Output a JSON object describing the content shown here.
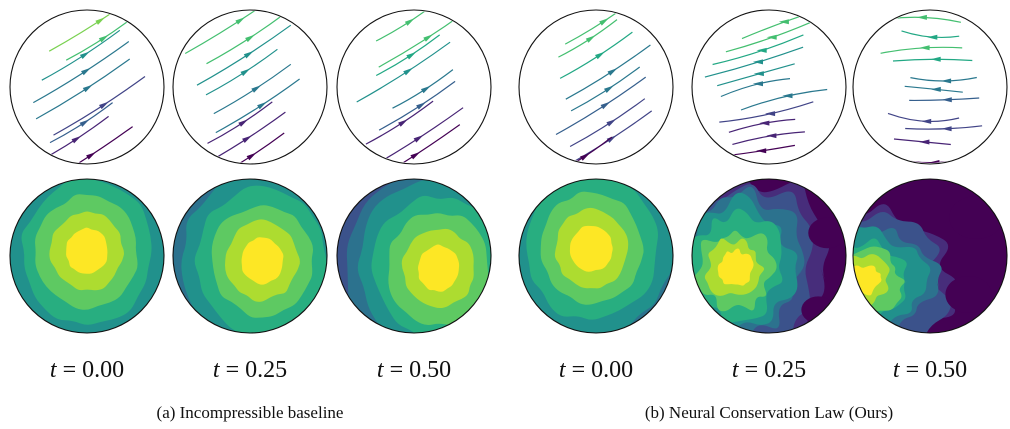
{
  "groups": [
    {
      "caption": "(a) Incompressible baseline",
      "panels": [
        {
          "t_var": "t",
          "t_value": "= 0.00",
          "density_peak": [
            0.5,
            0.47
          ],
          "density_spread": 0.55,
          "flow": "uniform"
        },
        {
          "t_var": "t",
          "t_value": "= 0.25",
          "density_peak": [
            0.58,
            0.53
          ],
          "density_spread": 0.55,
          "flow": "uniform"
        },
        {
          "t_var": "t",
          "t_value": "= 0.50",
          "density_peak": [
            0.66,
            0.58
          ],
          "density_spread": 0.55,
          "flow": "uniform"
        }
      ]
    },
    {
      "caption": "(b) Neural Conservation Law (Ours)",
      "panels": [
        {
          "t_var": "t",
          "t_value": "= 0.00",
          "density_peak": [
            0.47,
            0.45
          ],
          "density_spread": 0.55,
          "flow": "uniform"
        },
        {
          "t_var": "t",
          "t_value": "= 0.25",
          "density_peak": [
            0.28,
            0.58
          ],
          "density_spread": 0.38,
          "flow": "diverging"
        },
        {
          "t_var": "t",
          "t_value": "= 0.50",
          "density_peak": [
            0.06,
            0.66
          ],
          "density_spread": 0.28,
          "flow": "wavy"
        }
      ]
    }
  ],
  "colormap": [
    "#440154",
    "#472d7b",
    "#3b528b",
    "#2c728e",
    "#21918c",
    "#28ae80",
    "#5ec962",
    "#addc30",
    "#fde725"
  ],
  "colors": {
    "outline": "#111111",
    "background": "#ffffff"
  }
}
